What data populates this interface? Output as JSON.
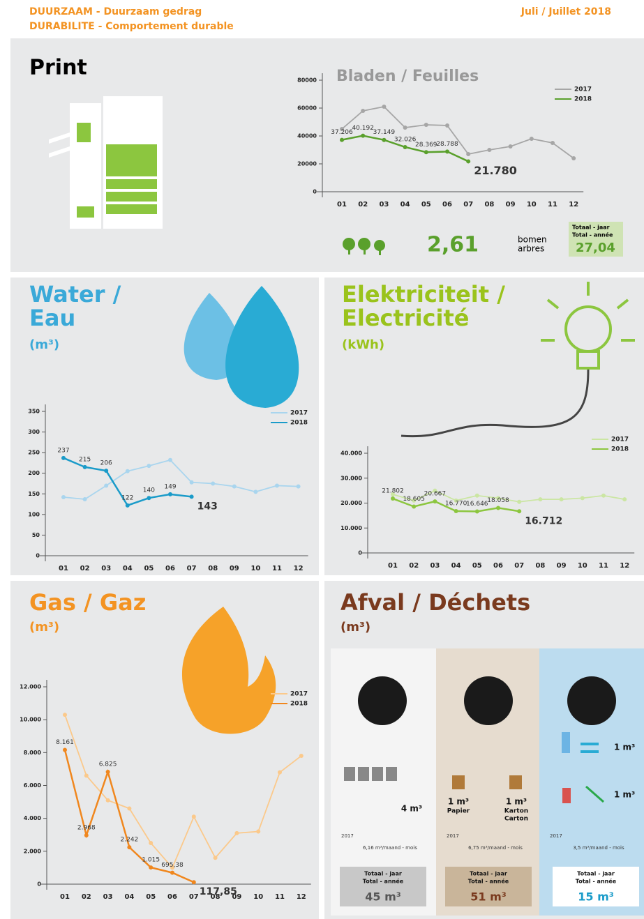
{
  "header": {
    "lines": [
      "DUURZAAM - Duurzaam gedrag",
      "DURABILITE - Comportement durable"
    ],
    "date": "Juli / Juillet 2018"
  },
  "print": {
    "title": "Print",
    "trees_value": "2,61",
    "trees_unit": [
      "bomen",
      "arbres"
    ],
    "total_label": [
      "Totaal - jaar",
      "Total - année"
    ],
    "total_value": "27,04"
  },
  "chart_data": [
    {
      "type": "line",
      "title": [
        "Bladen / Feuilles"
      ],
      "categories": [
        "01",
        "02",
        "03",
        "04",
        "05",
        "06",
        "07",
        "08",
        "09",
        "10",
        "11",
        "12"
      ],
      "ylim": [
        0,
        80000
      ],
      "yticks": [
        0,
        20000,
        40000,
        60000,
        80000
      ],
      "series": [
        {
          "name": "2017",
          "color": "#a6a6a6",
          "values": [
            45000,
            58000,
            61000,
            46000,
            48000,
            47500,
            27000,
            30000,
            32500,
            38000,
            35000,
            24000
          ]
        },
        {
          "name": "2018",
          "color": "#5aa02c",
          "values": [
            37206,
            40192,
            37149,
            32026,
            28369,
            28788,
            21780,
            null,
            null,
            null,
            null,
            null
          ],
          "value_labels": [
            "37.206",
            "40.192",
            "37.149",
            "32.026",
            "28.369",
            "28.788",
            "21.780",
            null,
            null,
            null,
            null,
            null
          ]
        }
      ]
    },
    {
      "type": "line",
      "title": [
        "Water /",
        "Eau"
      ],
      "subtitle": "(m³)",
      "categories": [
        "01",
        "02",
        "03",
        "04",
        "05",
        "06",
        "07",
        "08",
        "09",
        "10",
        "11",
        "12"
      ],
      "ylim": [
        0,
        350
      ],
      "yticks": [
        0,
        50,
        100,
        150,
        200,
        250,
        300,
        350
      ],
      "series": [
        {
          "name": "2017",
          "color": "#a9d5ee",
          "values": [
            142,
            137,
            170,
            205,
            218,
            232,
            178,
            175,
            168,
            155,
            170,
            168
          ]
        },
        {
          "name": "2018",
          "color": "#1a9bc9",
          "values": [
            237,
            215,
            206,
            122,
            140,
            149,
            143,
            null,
            null,
            null,
            null,
            null
          ]
        }
      ]
    },
    {
      "type": "line",
      "title": [
        "Elektriciteit /",
        "Electricité"
      ],
      "subtitle": "(kWh)",
      "categories": [
        "01",
        "02",
        "03",
        "04",
        "05",
        "06",
        "07",
        "08",
        "09",
        "10",
        "11",
        "12"
      ],
      "ylim": [
        0,
        40000
      ],
      "yticks": [
        0,
        {
          "value": 10000,
          "label": "10.000"
        },
        {
          "value": 20000,
          "label": "20.000"
        },
        {
          "value": 30000,
          "label": "30.000"
        },
        {
          "value": 40000,
          "label": "40.000"
        }
      ],
      "series": [
        {
          "name": "2017",
          "color": "#cbe6a3",
          "values": [
            23500,
            21000,
            25000,
            21000,
            23000,
            22000,
            20500,
            21500,
            21500,
            22000,
            23000,
            21500
          ]
        },
        {
          "name": "2018",
          "color": "#8cc63f",
          "values": [
            21802,
            18605,
            20667,
            16770,
            16646,
            18058,
            16712,
            null,
            null,
            null,
            null,
            null
          ],
          "value_labels": [
            "21.802",
            "18.605",
            "20.667",
            "16.770",
            "16.646",
            "18.058",
            "16.712",
            null,
            null,
            null,
            null,
            null
          ]
        }
      ]
    },
    {
      "type": "line",
      "title": [
        "Gas / Gaz"
      ],
      "subtitle": "(m³)",
      "categories": [
        "01",
        "02",
        "03",
        "04",
        "05",
        "06",
        "07",
        "08",
        "09",
        "10",
        "11",
        "12"
      ],
      "ylim": [
        0,
        12000
      ],
      "yticks": [
        0,
        {
          "value": 2000,
          "label": "2.000"
        },
        {
          "value": 4000,
          "label": "4.000"
        },
        {
          "value": 6000,
          "label": "6.000"
        },
        {
          "value": 8000,
          "label": "8.000"
        },
        {
          "value": 10000,
          "label": "10.000"
        },
        {
          "value": 12000,
          "label": "12.000"
        }
      ],
      "series": [
        {
          "name": "2017",
          "color": "#fbc98b",
          "values": [
            10300,
            6600,
            5100,
            4600,
            2500,
            1000,
            4100,
            1600,
            3100,
            3200,
            6800,
            7800
          ]
        },
        {
          "name": "2018",
          "color": "#f0871e",
          "values": [
            8161,
            2968,
            6825,
            2242,
            1015,
            695.38,
            117.85,
            null,
            null,
            null,
            null,
            null
          ],
          "value_labels": [
            "8.161",
            "2.968",
            "6.825",
            "2.242",
            "1.015",
            "695,38",
            "117,85",
            null,
            null,
            null,
            null,
            null
          ]
        }
      ]
    }
  ],
  "waste": {
    "title": "Afval / Déchets",
    "unit": "(m³)",
    "columns": [
      {
        "items": [
          {
            "quantity": "4 m³"
          }
        ],
        "year": "2017",
        "rate": "6,16 m³/maand - mois",
        "total_label": [
          "Totaal - jaar",
          "Total - année"
        ],
        "total": "45 m³"
      },
      {
        "items": [
          {
            "quantity": "1 m³",
            "label": [
              "Papier"
            ]
          },
          {
            "quantity": "1 m³",
            "label": [
              "Karton",
              "Carton"
            ]
          }
        ],
        "year": "2017",
        "rate": "6,75 m³/maand - mois",
        "total_label": [
          "Totaal - jaar",
          "Total - année"
        ],
        "total": "51 m³"
      },
      {
        "items": [
          {
            "quantity": "1 m³"
          },
          {
            "quantity": "1 m³"
          }
        ],
        "year": "2017",
        "rate": "3,5 m³/maand - mois",
        "total_label": [
          "Totaal - jaar",
          "Total - année"
        ],
        "total": "15 m³"
      }
    ]
  }
}
